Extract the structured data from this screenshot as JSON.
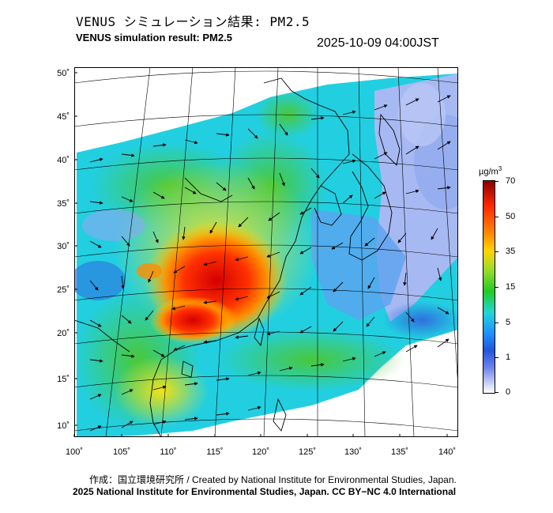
{
  "header": {
    "title_jp": "VENUS シミュレーション結果: PM2.5",
    "title_en": "VENUS simulation result: PM2.5",
    "timestamp": "2025-10-09 04:00JST"
  },
  "map": {
    "lon_ticks": [
      "100˚",
      "105˚",
      "110˚",
      "115˚",
      "120˚",
      "125˚",
      "130˚",
      "135˚",
      "140˚"
    ],
    "lat_ticks": [
      "50˚",
      "45˚",
      "40˚",
      "35˚",
      "30˚",
      "25˚",
      "20˚",
      "15˚",
      "10˚"
    ],
    "lon_range": [
      100,
      141
    ],
    "lat_range": [
      9,
      50
    ]
  },
  "colorbar": {
    "unit": "µg/m",
    "unit_exp": "3",
    "labels": [
      "70",
      "50",
      "35",
      "15",
      "5",
      "1",
      "0"
    ],
    "colors": [
      "#8b0000",
      "#ff2a00",
      "#ff8c00",
      "#ffd400",
      "#22cc22",
      "#1fd6d6",
      "#1e90ff",
      "#2255dd",
      "#ffffff"
    ]
  },
  "footer": {
    "credit_line1": "作成：国立環境研究所 / Created by National Institute for Environmental Studies, Japan.",
    "credit_line2": "2025 National Institute for Environmental Studies, Japan. CC BY−NC 4.0 International"
  }
}
